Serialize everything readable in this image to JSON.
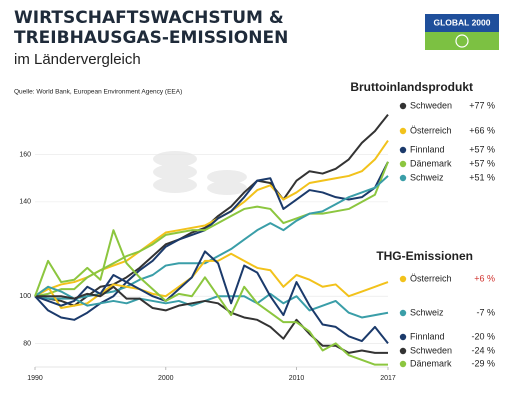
{
  "chart_data": {
    "type": "line",
    "title": [
      "WIRTSCHAFTSWACHSTUM &",
      "TREIBHAUSGAS-EMISSIONEN"
    ],
    "subtitle": "im Ländervergleich",
    "source": "Quelle: World Bank, European Environment Agency (EEA)",
    "logo": "GLOBAL 2000",
    "x": [
      1990,
      1991,
      1992,
      1993,
      1994,
      1995,
      1996,
      1997,
      1998,
      1999,
      2000,
      2001,
      2002,
      2003,
      2004,
      2005,
      2006,
      2007,
      2008,
      2009,
      2010,
      2011,
      2012,
      2013,
      2014,
      2015,
      2016,
      2017
    ],
    "xlim": [
      1990,
      2017
    ],
    "xticks": [
      1990,
      2000,
      2010,
      2017
    ],
    "ylim": [
      70,
      187
    ],
    "yticks": [
      80,
      100,
      140,
      160
    ],
    "grid": true,
    "groups": [
      {
        "title": "Bruttoinlandsprodukt",
        "series": [
          {
            "name": "Schweden",
            "color": "#333333",
            "end_label": "+77 %",
            "values": [
              100,
              99,
              98,
              96,
              100,
              104,
              105,
              108,
              112,
              117,
              122,
              124,
              127,
              129,
              134,
              138,
              144,
              149,
              148,
              141,
              149,
              153,
              152,
              154,
              158,
              165,
              170,
              177
            ]
          },
          {
            "name": "Österreich",
            "color": "#f2c21b",
            "end_label": "+66 %",
            "values": [
              100,
              103,
              105,
              106,
              108,
              111,
              113,
              115,
              119,
              123,
              127,
              128,
              129,
              130,
              133,
              136,
              140,
              145,
              147,
              141,
              144,
              148,
              149,
              150,
              151,
              153,
              158,
              166
            ]
          },
          {
            "name": "Finnland",
            "color": "#1b3a6b",
            "end_label": "+57 %",
            "values": [
              100,
              94,
              91,
              90,
              93,
              97,
              100,
              106,
              111,
              115,
              121,
              124,
              126,
              128,
              133,
              136,
              142,
              149,
              150,
              137,
              141,
              145,
              144,
              142,
              141,
              142,
              146,
              157
            ]
          },
          {
            "name": "Dänemark",
            "color": "#8cc63f",
            "end_label": "+57 %",
            "values": [
              100,
              101,
              103,
              103,
              108,
              111,
              114,
              117,
              119,
              122,
              126,
              127,
              128,
              128,
              131,
              134,
              137,
              138,
              137,
              131,
              133,
              135,
              135,
              136,
              137,
              140,
              143,
              157
            ]
          },
          {
            "name": "Schweiz",
            "color": "#3a9ea8",
            "end_label": "+51 %",
            "values": [
              100,
              99,
              99,
              99,
              100,
              101,
              102,
              104,
              107,
              109,
              113,
              114,
              114,
              114,
              117,
              120,
              124,
              128,
              131,
              128,
              132,
              135,
              136,
              139,
              142,
              144,
              146,
              151
            ]
          }
        ]
      },
      {
        "title": "THG-Emissionen",
        "series": [
          {
            "name": "Österreich",
            "color": "#f2c21b",
            "end_label": "+6 %",
            "label_color": "#d0312d",
            "values": [
              100,
              104,
              95,
              96,
              97,
              101,
              105,
              104,
              103,
              101,
              100,
              104,
              108,
              115,
              115,
              118,
              115,
              112,
              111,
              104,
              109,
              107,
              104,
              105,
              100,
              102,
              104,
              106
            ]
          },
          {
            "name": "Schweiz",
            "color": "#3a9ea8",
            "end_label": "-7 %",
            "values": [
              100,
              104,
              102,
              99,
              96,
              97,
              98,
              97,
              99,
              98,
              97,
              98,
              96,
              98,
              100,
              100,
              100,
              97,
              101,
              97,
              100,
              94,
              96,
              98,
              93,
              91,
              92,
              93
            ]
          },
          {
            "name": "Finnland",
            "color": "#1b3a6b",
            "end_label": "-20 %",
            "values": [
              100,
              98,
              96,
              98,
              104,
              101,
              109,
              106,
              103,
              100,
              98,
              103,
              108,
              119,
              114,
              97,
              113,
              110,
              100,
              92,
              106,
              96,
              88,
              87,
              83,
              81,
              87,
              80
            ]
          },
          {
            "name": "Schweden",
            "color": "#333333",
            "end_label": "-24 %",
            "values": [
              100,
              100,
              100,
              99,
              101,
              100,
              104,
              99,
              99,
              95,
              94,
              96,
              97,
              98,
              97,
              93,
              91,
              90,
              87,
              82,
              90,
              84,
              79,
              79,
              76,
              77,
              76,
              76
            ]
          },
          {
            "name": "Dänemark",
            "color": "#8cc63f",
            "end_label": "-29 %",
            "values": [
              100,
              115,
              106,
              107,
              112,
              107,
              128,
              114,
              108,
              103,
              98,
              101,
              100,
              108,
              100,
              92,
              104,
              97,
              93,
              89,
              89,
              85,
              77,
              80,
              75,
              73,
              71,
              71
            ]
          }
        ]
      }
    ]
  }
}
